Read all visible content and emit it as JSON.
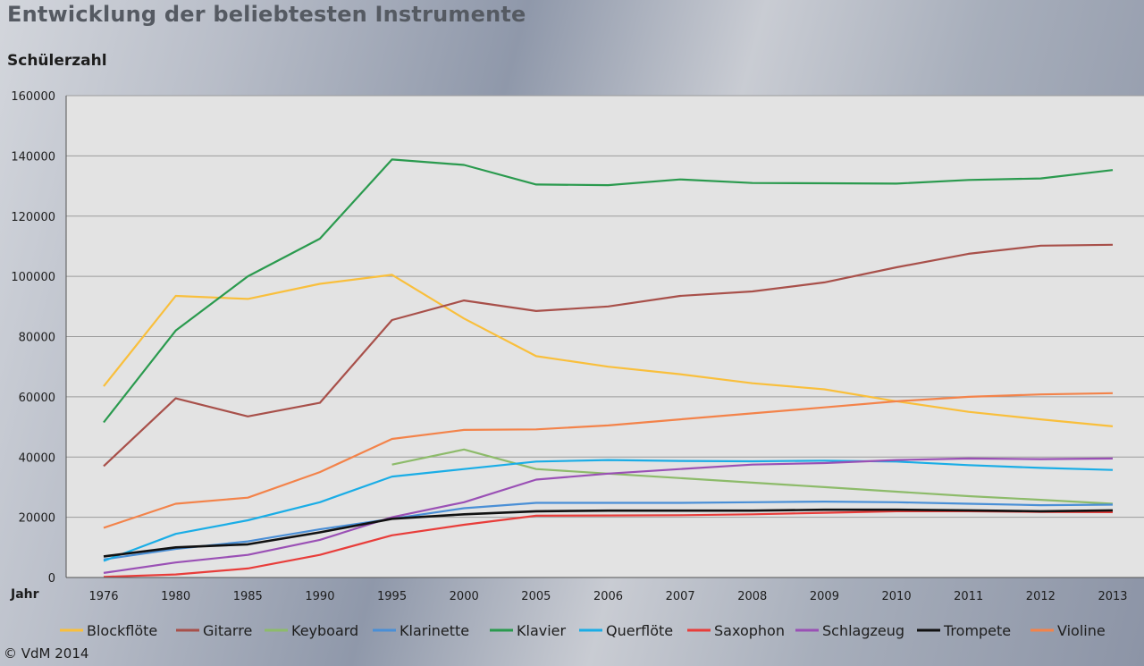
{
  "header": {
    "title": "Entwicklung der beliebtesten Instrumente",
    "y_axis_label": "Schülerzahl"
  },
  "footer": {
    "copyright": "© VdM 2014"
  },
  "chart_data": {
    "type": "line",
    "title": "Entwicklung der beliebtesten Instrumente",
    "ylabel": "Schülerzahl",
    "xlabel": "Jahr",
    "x": [
      "1976",
      "1980",
      "1985",
      "1990",
      "1995",
      "2000",
      "2005",
      "2006",
      "2007",
      "2008",
      "2009",
      "2010",
      "2011",
      "2012",
      "2013"
    ],
    "ylim": [
      0,
      160000
    ],
    "yticks": [
      0,
      20000,
      40000,
      60000,
      80000,
      100000,
      120000,
      140000,
      160000
    ],
    "grid": true,
    "legend_position": "bottom",
    "series": [
      {
        "name": "Blockflöte",
        "color": "#f9bf3c",
        "values": [
          63500,
          93500,
          92500,
          97500,
          100500,
          86000,
          73500,
          70000,
          67500,
          64500,
          62500,
          58500,
          55000,
          52500,
          50200
        ]
      },
      {
        "name": "Gitarre",
        "color": "#a8504a",
        "values": [
          37000,
          59500,
          53500,
          58000,
          85500,
          92000,
          88500,
          90000,
          93500,
          95000,
          98000,
          103000,
          107500,
          110200,
          110500
        ]
      },
      {
        "name": "Keyboard",
        "color": "#8dbb6a",
        "values": [
          null,
          null,
          null,
          null,
          37500,
          42500,
          36000,
          34500,
          33000,
          31500,
          30000,
          28500,
          27000,
          25800,
          24500
        ]
      },
      {
        "name": "Klarinette",
        "color": "#4a8fd6",
        "values": [
          6000,
          9500,
          12000,
          16000,
          19500,
          23000,
          24800,
          24800,
          24800,
          25000,
          25200,
          25000,
          24500,
          24000,
          24200
        ]
      },
      {
        "name": "Klavier",
        "color": "#2a9a4e",
        "values": [
          51500,
          82000,
          100000,
          112500,
          138800,
          137000,
          130500,
          130300,
          132200,
          131000,
          130900,
          130800,
          132000,
          132500,
          135300
        ]
      },
      {
        "name": "Querflöte",
        "color": "#1aade6",
        "values": [
          5500,
          14500,
          19000,
          25000,
          33500,
          36000,
          38500,
          39000,
          38700,
          38600,
          38800,
          38500,
          37300,
          36400,
          35700
        ]
      },
      {
        "name": "Saxophon",
        "color": "#e83d3a",
        "values": [
          200,
          1000,
          3000,
          7500,
          14000,
          17500,
          20500,
          20600,
          20700,
          21000,
          21500,
          22000,
          22000,
          21800,
          21700
        ]
      },
      {
        "name": "Schlagzeug",
        "color": "#9a50b5",
        "values": [
          1500,
          5000,
          7500,
          12500,
          20000,
          25000,
          32500,
          34500,
          36000,
          37500,
          38000,
          39000,
          39500,
          39300,
          39500
        ]
      },
      {
        "name": "Trompete",
        "color": "#111111",
        "values": [
          7000,
          10000,
          11000,
          15000,
          19500,
          21000,
          22000,
          22200,
          22200,
          22200,
          22500,
          22500,
          22300,
          22000,
          22300
        ]
      },
      {
        "name": "Violine",
        "color": "#f3834a",
        "values": [
          16500,
          24500,
          26500,
          35000,
          46000,
          49000,
          49200,
          50500,
          52500,
          54500,
          56500,
          58500,
          60000,
          60800,
          61200
        ]
      }
    ]
  }
}
